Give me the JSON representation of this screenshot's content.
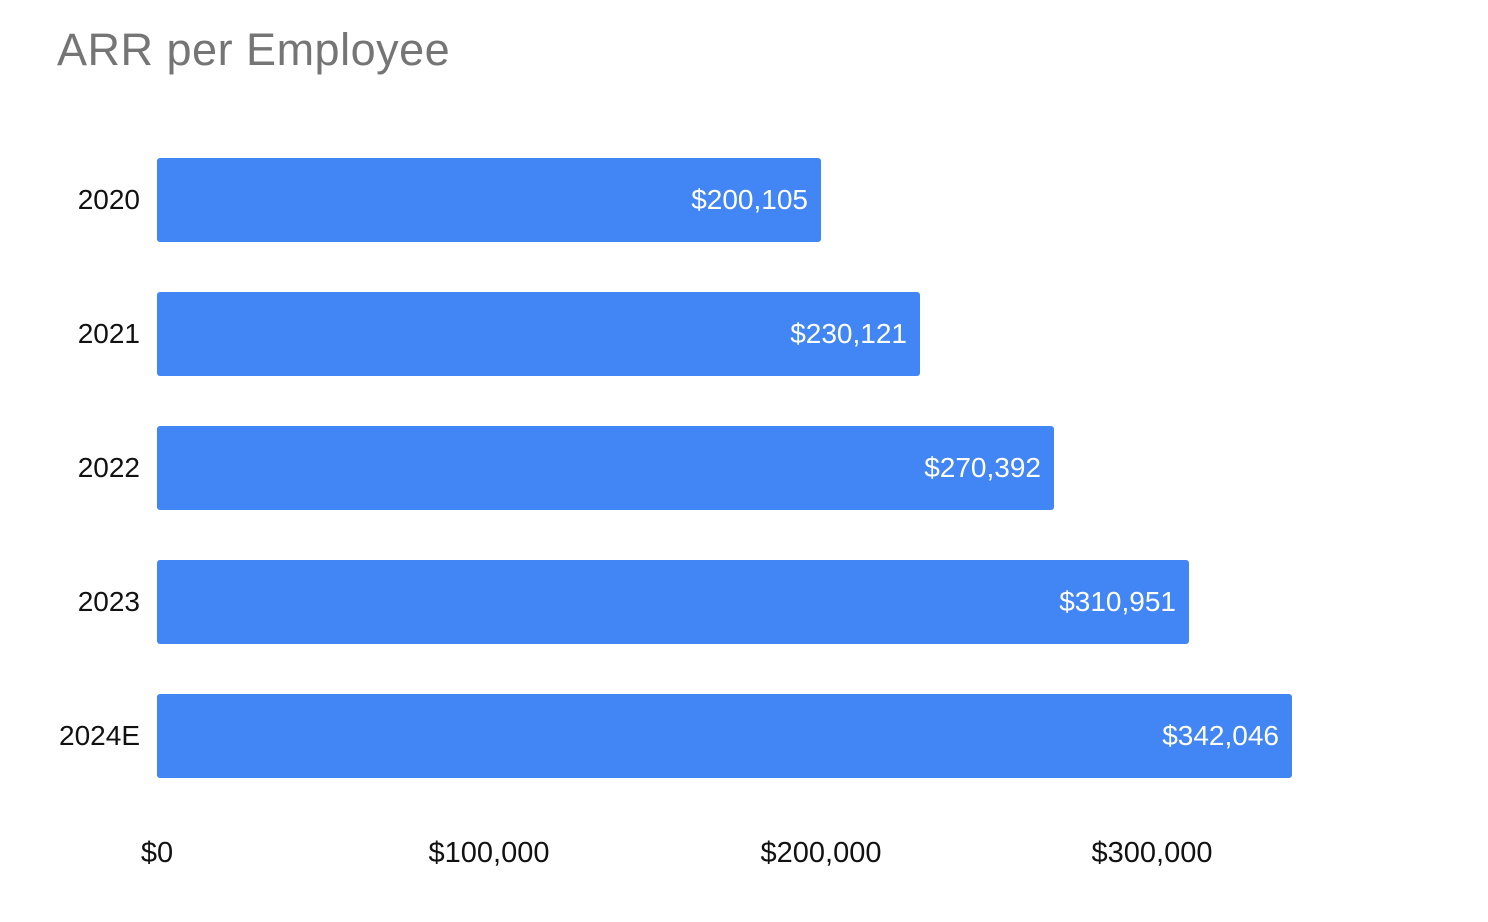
{
  "colors": {
    "bar": "#4285F4",
    "title_text": "#757575",
    "axis_text": "#111111",
    "value_label_text": "#ffffff",
    "background": "#ffffff"
  },
  "chart_data": {
    "type": "bar",
    "orientation": "horizontal",
    "title": "ARR per Employee",
    "xlabel": "",
    "ylabel": "",
    "categories": [
      "2020",
      "2021",
      "2022",
      "2023",
      "2024E"
    ],
    "values": [
      200105,
      230121,
      270392,
      310951,
      342046
    ],
    "value_labels": [
      "$200,105",
      "$230,121",
      "$270,392",
      "$310,951",
      "$342,046"
    ],
    "value_label_position": "inside-end",
    "xlim": [
      0,
      400000
    ],
    "x_ticks": [
      0,
      100000,
      200000,
      300000
    ],
    "x_tick_labels": [
      "$0",
      "$100,000",
      "$200,000",
      "$300,000"
    ],
    "grid": false,
    "legend": false
  }
}
